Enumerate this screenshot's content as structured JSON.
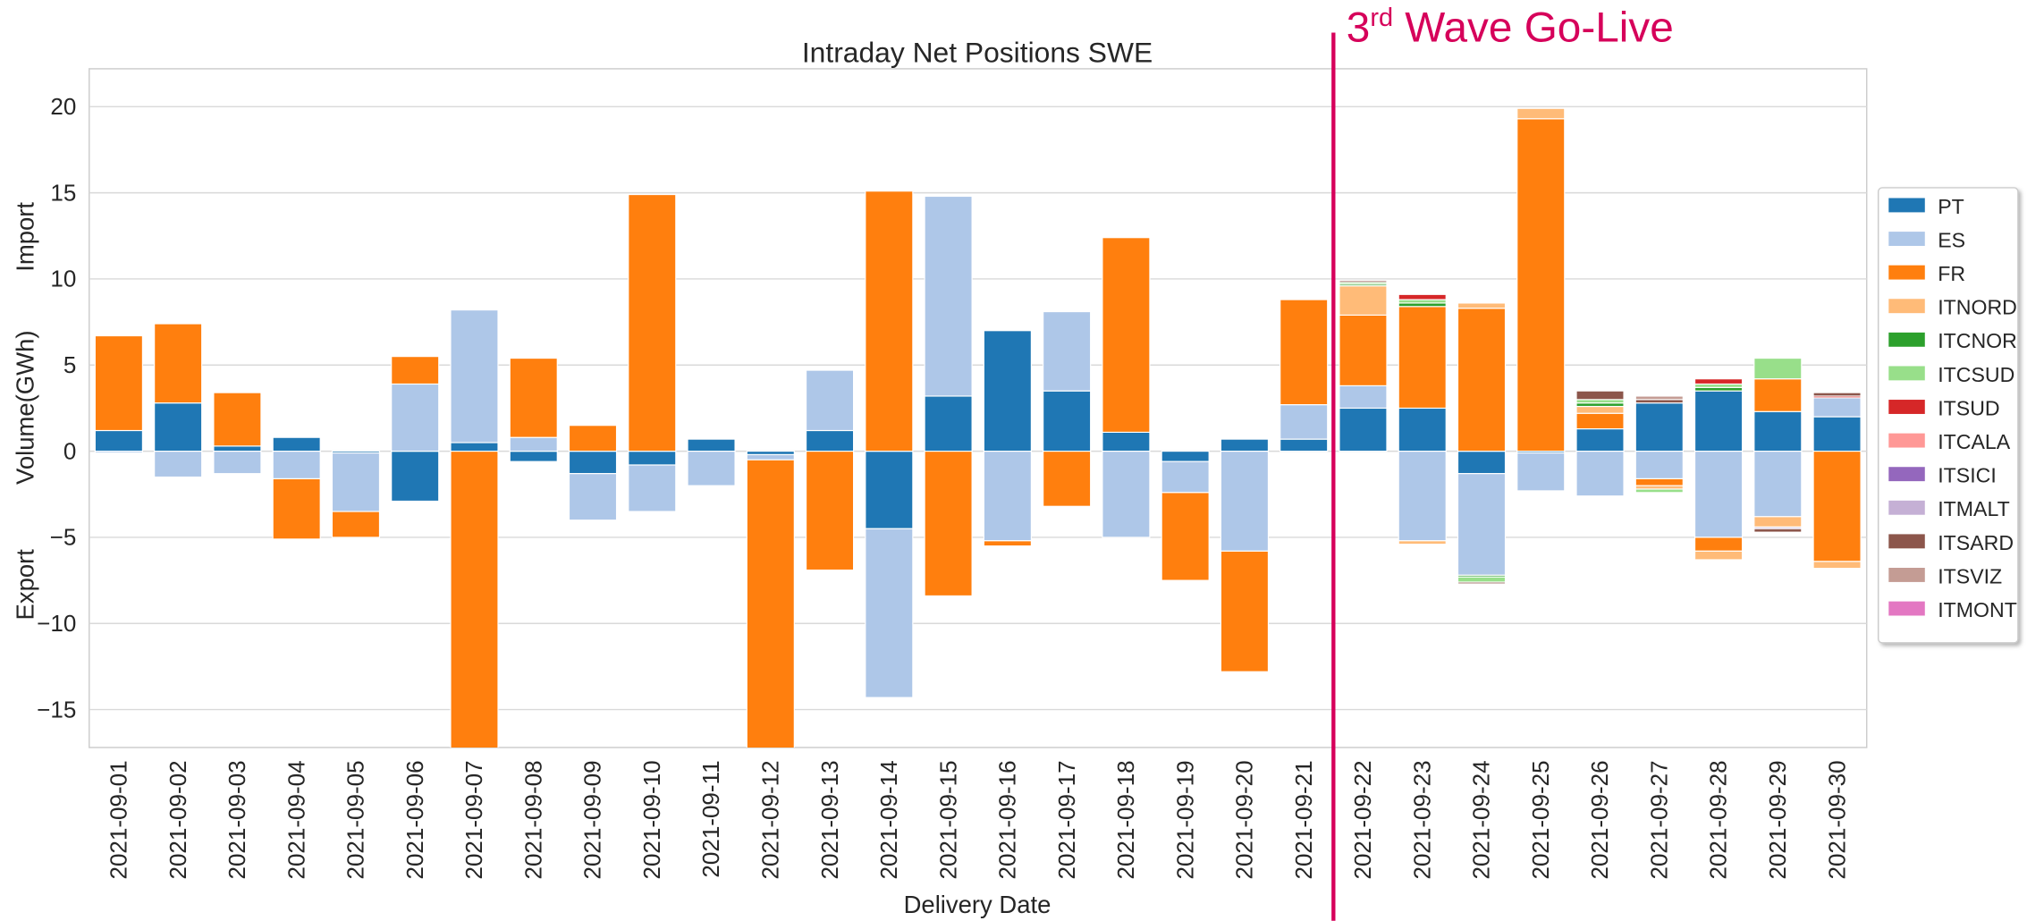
{
  "chart_data": {
    "type": "bar",
    "stacked": true,
    "title": "Intraday Net Positions SWE",
    "x_label": "Delivery Date",
    "y_label": "Volume(GWh)",
    "annotations": {
      "import": "Import",
      "export": "Export",
      "event_number": "3",
      "event_suffix": "rd",
      "event_text": " Wave Go-Live",
      "event_color": "#d6005a",
      "event_x": 20.5
    },
    "categories": [
      "2021-09-01",
      "2021-09-02",
      "2021-09-03",
      "2021-09-04",
      "2021-09-05",
      "2021-09-06",
      "2021-09-07",
      "2021-09-08",
      "2021-09-09",
      "2021-09-10",
      "2021-09-11",
      "2021-09-12",
      "2021-09-13",
      "2021-09-14",
      "2021-09-15",
      "2021-09-16",
      "2021-09-17",
      "2021-09-18",
      "2021-09-19",
      "2021-09-20",
      "2021-09-21",
      "2021-09-22",
      "2021-09-23",
      "2021-09-24",
      "2021-09-25",
      "2021-09-26",
      "2021-09-27",
      "2021-09-28",
      "2021-09-29",
      "2021-09-30"
    ],
    "series": [
      {
        "name": "PT",
        "color": "#1f77b4",
        "values": [
          1.2,
          2.8,
          0.3,
          0.8,
          -0.1,
          -2.9,
          0.5,
          -0.6,
          -1.3,
          -0.8,
          0.7,
          -0.2,
          1.2,
          -4.5,
          3.2,
          7.0,
          3.5,
          1.1,
          -0.6,
          0.7,
          0.7,
          2.5,
          2.5,
          -1.3,
          -0.1,
          1.3,
          2.8,
          3.5,
          2.3,
          2.0
        ]
      },
      {
        "name": "ES",
        "color": "#aec7e8",
        "values": [
          -0.1,
          -1.5,
          -1.3,
          -1.6,
          -3.4,
          3.9,
          7.7,
          0.8,
          -2.7,
          -2.7,
          -2.0,
          -0.3,
          3.5,
          -9.8,
          11.6,
          -5.2,
          4.6,
          -5.0,
          -1.8,
          -5.8,
          2.0,
          1.3,
          -5.2,
          -5.9,
          -2.2,
          -2.6,
          -1.6,
          -5.0,
          -3.8,
          1.1
        ]
      },
      {
        "name": "FR",
        "color": "#ff7f0e",
        "values": [
          5.5,
          4.6,
          3.1,
          -3.5,
          -1.5,
          1.6,
          -18,
          4.6,
          1.5,
          14.9,
          0,
          -18,
          -6.9,
          15.1,
          -8.4,
          -0.3,
          -3.2,
          11.3,
          -5.1,
          -7.0,
          6.1,
          4.1,
          5.9,
          8.3,
          19.3,
          0.9,
          -0.4,
          -0.8,
          1.9,
          -6.4
        ]
      },
      {
        "name": "ITNORD",
        "color": "#ffbb78",
        "values": [
          0,
          0,
          0,
          0,
          0,
          0,
          0,
          0,
          0,
          0,
          0,
          0,
          0,
          0,
          0,
          0,
          0,
          0,
          0,
          0,
          0,
          1.7,
          -0.2,
          0.3,
          0.6,
          0.4,
          -0.2,
          -0.5,
          -0.6,
          -0.4
        ]
      },
      {
        "name": "ITCNOR",
        "color": "#2ca02c",
        "values": [
          0,
          0,
          0,
          0,
          0,
          0,
          0,
          0,
          0,
          0,
          0,
          0,
          0,
          0,
          0,
          0,
          0,
          0,
          0,
          0,
          0,
          0.1,
          0.2,
          -0.1,
          0,
          0.2,
          0,
          0.2,
          0,
          0
        ]
      },
      {
        "name": "ITCSUD",
        "color": "#98df8a",
        "values": [
          0,
          0,
          0,
          0,
          0,
          0,
          0,
          0,
          0,
          0,
          0,
          0,
          0,
          0,
          0,
          0,
          0,
          0,
          0,
          0,
          0,
          0.1,
          0.2,
          -0.3,
          0,
          0.2,
          -0.2,
          0.2,
          1.2,
          0
        ]
      },
      {
        "name": "ITSUD",
        "color": "#d62728",
        "values": [
          0,
          0,
          0,
          0,
          0,
          0,
          0,
          0,
          0,
          0,
          0,
          0,
          0,
          0,
          0,
          0,
          0,
          0,
          0,
          0,
          0,
          0,
          0.3,
          0,
          0,
          0,
          0,
          0.3,
          0,
          0.1
        ]
      },
      {
        "name": "ITCALA",
        "color": "#ff9896",
        "values": [
          0,
          0,
          0,
          0,
          0,
          0,
          0,
          0,
          0,
          0,
          0,
          0,
          0,
          0,
          0,
          0,
          0,
          0,
          0,
          0,
          0,
          0,
          0,
          0,
          0,
          0,
          0,
          0,
          0,
          0
        ]
      },
      {
        "name": "ITSICI",
        "color": "#9467bd",
        "values": [
          0,
          0,
          0,
          0,
          0,
          0,
          0,
          0,
          0,
          0,
          0,
          0,
          0,
          0,
          0,
          0,
          0,
          0,
          0,
          0,
          0,
          0,
          0,
          0,
          0,
          0,
          0,
          0,
          0,
          0
        ]
      },
      {
        "name": "ITMALT",
        "color": "#c5b0d5",
        "values": [
          0,
          0,
          0,
          0,
          0,
          0,
          0,
          0,
          0,
          0,
          0,
          0,
          0,
          0,
          0,
          0,
          0,
          0,
          0,
          0,
          0,
          0,
          0,
          0,
          0,
          0,
          0,
          0,
          -0.1,
          0
        ]
      },
      {
        "name": "ITSARD",
        "color": "#8c564b",
        "values": [
          0,
          0,
          0,
          0,
          0,
          0,
          0,
          0,
          0,
          0,
          0,
          0,
          0,
          0,
          0,
          0,
          0,
          0,
          0,
          0,
          0,
          0.1,
          0,
          -0.1,
          0,
          0.5,
          0.2,
          0,
          -0.2,
          0.2
        ]
      },
      {
        "name": "ITSVIZ",
        "color": "#c49c94",
        "values": [
          0,
          0,
          0,
          0,
          0,
          0,
          0,
          0,
          0,
          0,
          0,
          0,
          0,
          0,
          0,
          0,
          0,
          0,
          0,
          0,
          0,
          0,
          0,
          0,
          0,
          0,
          0.2,
          0,
          0,
          0
        ]
      },
      {
        "name": "ITMONT",
        "color": "#e377c2",
        "values": [
          0,
          0,
          0,
          0,
          0,
          0,
          0,
          0,
          0,
          0,
          0,
          0,
          0,
          0,
          0,
          0,
          0,
          0,
          0,
          0,
          0,
          0,
          0,
          0,
          0,
          0,
          0,
          0,
          0,
          0
        ]
      }
    ],
    "ylim": [
      -17.2,
      22.2
    ],
    "yticks": [
      {
        "value": -15,
        "label": "−15"
      },
      {
        "value": -10,
        "label": "−10"
      },
      {
        "value": -5,
        "label": "−5"
      },
      0,
      5,
      10,
      15,
      20
    ],
    "grid": true,
    "legend": "right"
  }
}
